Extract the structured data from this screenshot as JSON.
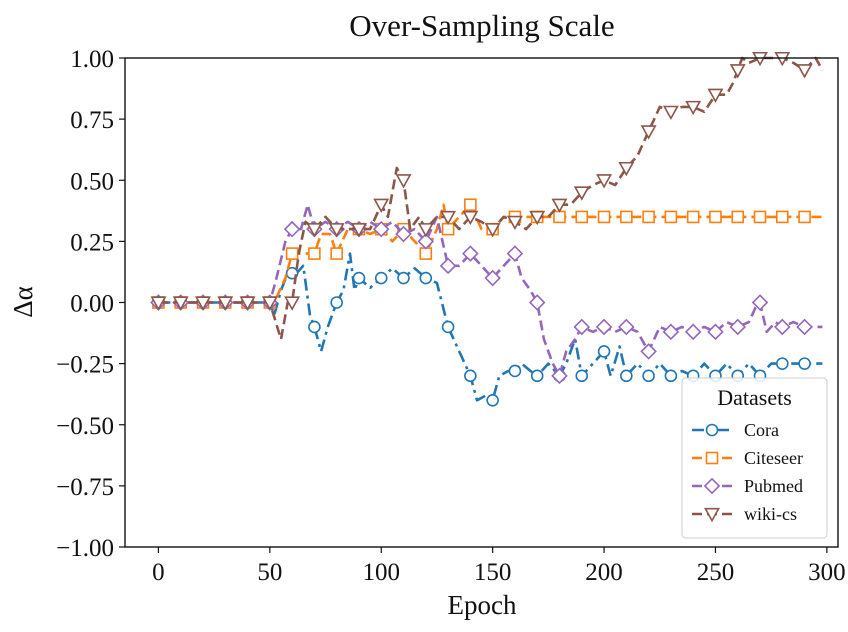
{
  "chart_data": {
    "type": "line",
    "title": "Over-Sampling Scale",
    "xlabel": "Epoch",
    "ylabel": "Δα",
    "xlim": [
      -15,
      305
    ],
    "ylim": [
      -1.0,
      1.0
    ],
    "xticks": [
      0,
      50,
      100,
      150,
      200,
      250,
      300
    ],
    "yticks": [
      -1.0,
      -0.75,
      -0.5,
      -0.25,
      0.0,
      0.25,
      0.5,
      0.75,
      1.0
    ],
    "xtick_labels": [
      "0",
      "50",
      "100",
      "150",
      "200",
      "250",
      "300"
    ],
    "ytick_labels": [
      "−1.00",
      "−0.75",
      "−0.50",
      "−0.25",
      "0.00",
      "0.25",
      "0.50",
      "0.75",
      "1.00"
    ],
    "grid": false,
    "legend": {
      "title": "Datasets",
      "placement": "lower-right",
      "entries": [
        "Cora",
        "Citeseer",
        "Pubmed",
        "wiki-cs"
      ]
    },
    "series": [
      {
        "name": "Cora",
        "color": "#1f77b4",
        "linestyle": "dashdot",
        "marker": "circle",
        "points": [
          [
            0,
            0
          ],
          [
            10,
            0
          ],
          [
            20,
            0
          ],
          [
            30,
            0
          ],
          [
            40,
            0
          ],
          [
            50,
            0
          ],
          [
            52,
            -0.05
          ],
          [
            55,
            0.05
          ],
          [
            58,
            0.12
          ],
          [
            62,
            0.12
          ],
          [
            65,
            0.15
          ],
          [
            68,
            -0.05
          ],
          [
            70,
            -0.1
          ],
          [
            73,
            -0.2
          ],
          [
            76,
            -0.1
          ],
          [
            80,
            0.0
          ],
          [
            83,
            0.05
          ],
          [
            86,
            0.2
          ],
          [
            88,
            0.05
          ],
          [
            90,
            0.1
          ],
          [
            95,
            0.06
          ],
          [
            100,
            0.1
          ],
          [
            105,
            0.14
          ],
          [
            110,
            0.1
          ],
          [
            115,
            0.14
          ],
          [
            120,
            0.1
          ],
          [
            125,
            0.08
          ],
          [
            130,
            -0.1
          ],
          [
            135,
            -0.2
          ],
          [
            140,
            -0.3
          ],
          [
            143,
            -0.4
          ],
          [
            147,
            -0.38
          ],
          [
            150,
            -0.4
          ],
          [
            153,
            -0.3
          ],
          [
            157,
            -0.28
          ],
          [
            160,
            -0.28
          ],
          [
            163,
            -0.25
          ],
          [
            167,
            -0.28
          ],
          [
            170,
            -0.3
          ],
          [
            175,
            -0.25
          ],
          [
            180,
            -0.3
          ],
          [
            183,
            -0.25
          ],
          [
            187,
            -0.15
          ],
          [
            190,
            -0.3
          ],
          [
            195,
            -0.25
          ],
          [
            200,
            -0.2
          ],
          [
            203,
            -0.3
          ],
          [
            207,
            -0.18
          ],
          [
            210,
            -0.3
          ],
          [
            215,
            -0.25
          ],
          [
            220,
            -0.3
          ],
          [
            225,
            -0.25
          ],
          [
            230,
            -0.3
          ],
          [
            235,
            -0.28
          ],
          [
            240,
            -0.3
          ],
          [
            245,
            -0.25
          ],
          [
            250,
            -0.3
          ],
          [
            255,
            -0.25
          ],
          [
            260,
            -0.3
          ],
          [
            265,
            -0.25
          ],
          [
            270,
            -0.3
          ],
          [
            275,
            -0.25
          ],
          [
            280,
            -0.25
          ],
          [
            285,
            -0.25
          ],
          [
            290,
            -0.25
          ],
          [
            298,
            -0.25
          ]
        ],
        "marker_x": [
          0,
          10,
          20,
          30,
          40,
          50,
          60,
          70,
          80,
          90,
          100,
          110,
          120,
          130,
          140,
          150,
          160,
          170,
          180,
          190,
          200,
          210,
          220,
          230,
          240,
          250,
          260,
          270,
          280,
          290
        ]
      },
      {
        "name": "Citeseer",
        "color": "#ff7f0e",
        "linestyle": "dashed",
        "marker": "square",
        "points": [
          [
            0,
            0
          ],
          [
            10,
            0
          ],
          [
            20,
            0
          ],
          [
            30,
            0
          ],
          [
            40,
            0
          ],
          [
            50,
            0
          ],
          [
            53,
            0.02
          ],
          [
            57,
            0.1
          ],
          [
            60,
            0.2
          ],
          [
            65,
            0.2
          ],
          [
            70,
            0.2
          ],
          [
            73,
            0.28
          ],
          [
            77,
            0.28
          ],
          [
            80,
            0.2
          ],
          [
            85,
            0.3
          ],
          [
            90,
            0.3
          ],
          [
            95,
            0.28
          ],
          [
            100,
            0.3
          ],
          [
            105,
            0.25
          ],
          [
            110,
            0.3
          ],
          [
            115,
            0.25
          ],
          [
            120,
            0.2
          ],
          [
            125,
            0.3
          ],
          [
            128,
            0.4
          ],
          [
            130,
            0.3
          ],
          [
            135,
            0.35
          ],
          [
            140,
            0.4
          ],
          [
            145,
            0.3
          ],
          [
            150,
            0.3
          ],
          [
            155,
            0.35
          ],
          [
            160,
            0.35
          ],
          [
            165,
            0.35
          ],
          [
            170,
            0.35
          ],
          [
            180,
            0.35
          ],
          [
            190,
            0.35
          ],
          [
            200,
            0.35
          ],
          [
            210,
            0.35
          ],
          [
            220,
            0.35
          ],
          [
            230,
            0.35
          ],
          [
            240,
            0.35
          ],
          [
            250,
            0.35
          ],
          [
            260,
            0.35
          ],
          [
            270,
            0.35
          ],
          [
            280,
            0.35
          ],
          [
            290,
            0.35
          ],
          [
            298,
            0.35
          ]
        ],
        "marker_x": [
          0,
          10,
          20,
          30,
          40,
          50,
          60,
          70,
          80,
          90,
          100,
          110,
          120,
          130,
          140,
          150,
          160,
          170,
          180,
          190,
          200,
          210,
          220,
          230,
          240,
          250,
          260,
          270,
          280,
          290
        ]
      },
      {
        "name": "Pubmed",
        "color": "#9467bd",
        "linestyle": "dashed",
        "marker": "diamond",
        "points": [
          [
            0,
            0
          ],
          [
            10,
            0
          ],
          [
            20,
            0
          ],
          [
            30,
            0
          ],
          [
            40,
            0
          ],
          [
            50,
            0
          ],
          [
            53,
            0.1
          ],
          [
            57,
            0.25
          ],
          [
            60,
            0.3
          ],
          [
            64,
            0.3
          ],
          [
            67,
            0.4
          ],
          [
            70,
            0.3
          ],
          [
            75,
            0.33
          ],
          [
            80,
            0.3
          ],
          [
            85,
            0.33
          ],
          [
            90,
            0.3
          ],
          [
            95,
            0.33
          ],
          [
            100,
            0.3
          ],
          [
            105,
            0.33
          ],
          [
            110,
            0.28
          ],
          [
            115,
            0.3
          ],
          [
            120,
            0.25
          ],
          [
            125,
            0.35
          ],
          [
            130,
            0.15
          ],
          [
            135,
            0.15
          ],
          [
            140,
            0.2
          ],
          [
            145,
            0.15
          ],
          [
            150,
            0.1
          ],
          [
            155,
            0.15
          ],
          [
            160,
            0.2
          ],
          [
            163,
            0.1
          ],
          [
            167,
            0.05
          ],
          [
            170,
            0.0
          ],
          [
            173,
            -0.15
          ],
          [
            177,
            -0.25
          ],
          [
            180,
            -0.3
          ],
          [
            183,
            -0.2
          ],
          [
            187,
            -0.15
          ],
          [
            190,
            -0.1
          ],
          [
            195,
            -0.12
          ],
          [
            200,
            -0.1
          ],
          [
            205,
            -0.12
          ],
          [
            210,
            -0.1
          ],
          [
            215,
            -0.12
          ],
          [
            220,
            -0.2
          ],
          [
            225,
            -0.1
          ],
          [
            230,
            -0.12
          ],
          [
            235,
            -0.1
          ],
          [
            240,
            -0.12
          ],
          [
            245,
            -0.1
          ],
          [
            250,
            -0.12
          ],
          [
            255,
            -0.08
          ],
          [
            260,
            -0.1
          ],
          [
            265,
            -0.08
          ],
          [
            268,
            -0.02
          ],
          [
            270,
            0.0
          ],
          [
            273,
            -0.12
          ],
          [
            277,
            -0.08
          ],
          [
            280,
            -0.1
          ],
          [
            285,
            -0.08
          ],
          [
            290,
            -0.1
          ],
          [
            298,
            -0.1
          ]
        ],
        "marker_x": [
          0,
          10,
          20,
          30,
          40,
          50,
          60,
          70,
          80,
          90,
          100,
          110,
          120,
          130,
          140,
          150,
          160,
          170,
          180,
          190,
          200,
          210,
          220,
          230,
          240,
          250,
          260,
          270,
          280,
          290
        ]
      },
      {
        "name": "wiki-cs",
        "color": "#8c564b",
        "linestyle": "dashed",
        "marker": "triangle-down",
        "points": [
          [
            0,
            0
          ],
          [
            10,
            0
          ],
          [
            20,
            0
          ],
          [
            30,
            0
          ],
          [
            40,
            0
          ],
          [
            50,
            0
          ],
          [
            55,
            -0.15
          ],
          [
            58,
            0.0
          ],
          [
            60,
            0.0
          ],
          [
            63,
            0.2
          ],
          [
            66,
            0.33
          ],
          [
            70,
            0.3
          ],
          [
            75,
            0.35
          ],
          [
            80,
            0.3
          ],
          [
            85,
            0.3
          ],
          [
            90,
            0.3
          ],
          [
            95,
            0.3
          ],
          [
            100,
            0.4
          ],
          [
            103,
            0.35
          ],
          [
            107,
            0.55
          ],
          [
            110,
            0.5
          ],
          [
            113,
            0.3
          ],
          [
            117,
            0.35
          ],
          [
            120,
            0.3
          ],
          [
            125,
            0.35
          ],
          [
            130,
            0.35
          ],
          [
            135,
            0.3
          ],
          [
            140,
            0.35
          ],
          [
            145,
            0.33
          ],
          [
            150,
            0.3
          ],
          [
            155,
            0.35
          ],
          [
            160,
            0.33
          ],
          [
            165,
            0.3
          ],
          [
            170,
            0.35
          ],
          [
            175,
            0.35
          ],
          [
            180,
            0.4
          ],
          [
            185,
            0.4
          ],
          [
            190,
            0.45
          ],
          [
            195,
            0.48
          ],
          [
            200,
            0.5
          ],
          [
            205,
            0.48
          ],
          [
            210,
            0.55
          ],
          [
            215,
            0.6
          ],
          [
            220,
            0.7
          ],
          [
            225,
            0.8
          ],
          [
            230,
            0.78
          ],
          [
            235,
            0.8
          ],
          [
            240,
            0.8
          ],
          [
            245,
            0.78
          ],
          [
            250,
            0.85
          ],
          [
            255,
            0.85
          ],
          [
            258,
            0.9
          ],
          [
            262,
            1.0
          ],
          [
            265,
            0.98
          ],
          [
            270,
            1.0
          ],
          [
            275,
            1.0
          ],
          [
            280,
            1.0
          ],
          [
            285,
            0.98
          ],
          [
            290,
            0.95
          ],
          [
            295,
            1.0
          ],
          [
            298,
            0.95
          ]
        ],
        "marker_x": [
          0,
          10,
          20,
          30,
          40,
          50,
          60,
          70,
          80,
          90,
          100,
          110,
          120,
          130,
          140,
          150,
          160,
          170,
          180,
          190,
          200,
          210,
          220,
          230,
          240,
          250,
          260,
          270,
          280,
          290
        ]
      }
    ]
  }
}
